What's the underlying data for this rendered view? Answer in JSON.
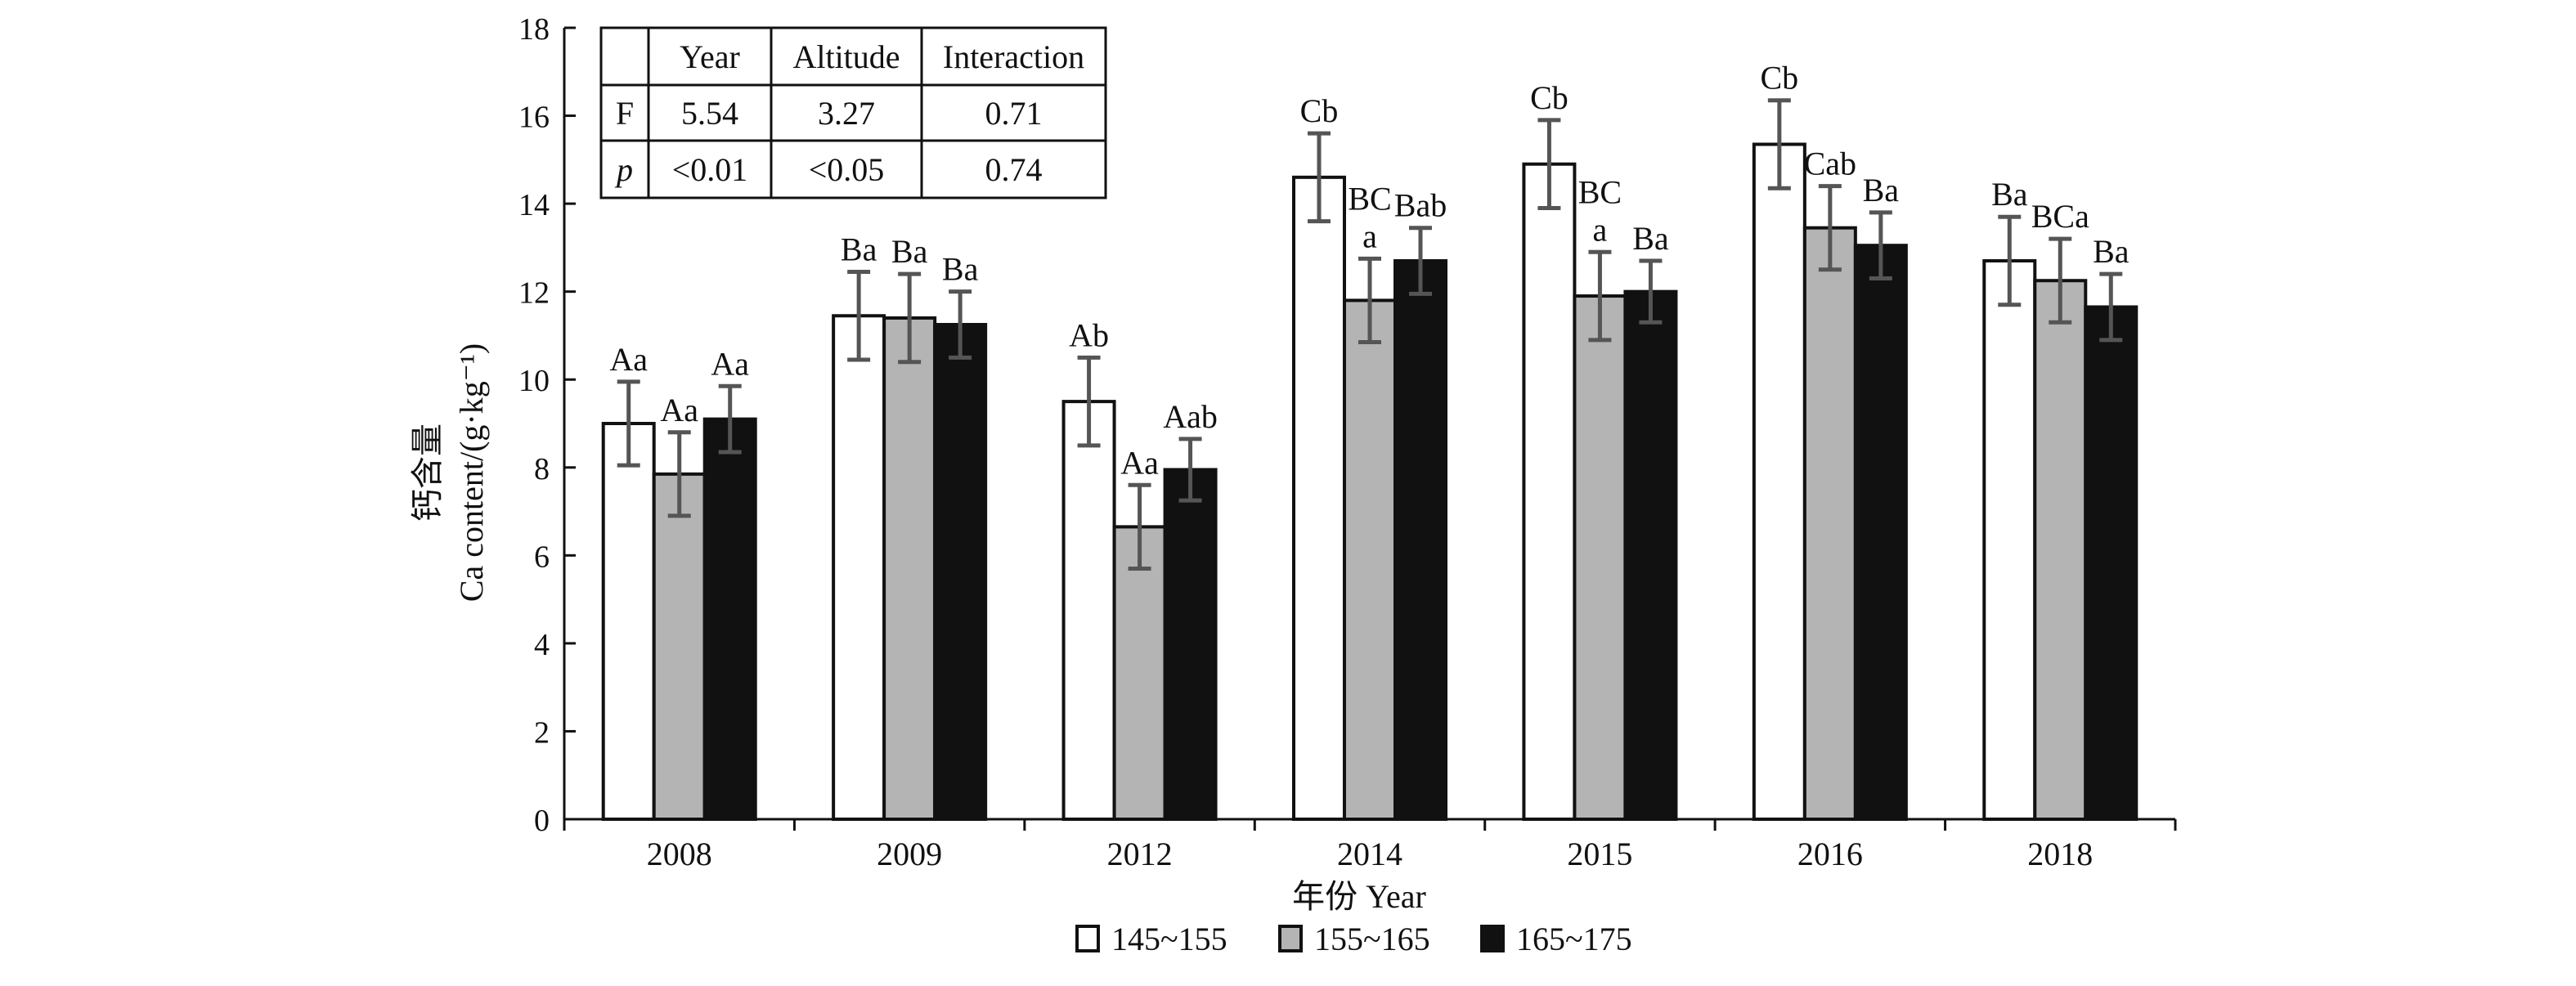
{
  "chart_data": {
    "type": "bar",
    "xlabel": "年份 Year",
    "ylabel_cn": "钙含量",
    "ylabel_en": "Ca content/(g·kg⁻¹)",
    "ylim": [
      0,
      18
    ],
    "yticks": [
      0,
      2,
      4,
      6,
      8,
      10,
      12,
      14,
      16,
      18
    ],
    "categories": [
      "2008",
      "2009",
      "2012",
      "2014",
      "2015",
      "2016",
      "2018"
    ],
    "legend_position": "bottom-center",
    "series": [
      {
        "name": "145~155",
        "color": "#ffffff",
        "values": [
          9.0,
          11.45,
          9.5,
          14.6,
          14.9,
          15.35,
          12.7
        ],
        "errors": [
          0.95,
          1.0,
          1.0,
          1.0,
          1.0,
          1.0,
          1.0
        ],
        "labels": [
          "Aa",
          "Ba",
          "Ab",
          "Cb",
          "Cb",
          "Cb",
          "Ba"
        ]
      },
      {
        "name": "155~165",
        "color": "#b4b4b4",
        "values": [
          7.85,
          11.4,
          6.65,
          11.8,
          11.9,
          13.45,
          12.25
        ],
        "errors": [
          0.95,
          1.0,
          0.95,
          0.95,
          1.0,
          0.95,
          0.95
        ],
        "labels": [
          "Aa",
          "Ba",
          "Aa",
          "BC\na",
          "BC\na",
          "Cab",
          "BCa"
        ]
      },
      {
        "name": "165~175",
        "color": "#111111",
        "values": [
          9.1,
          11.25,
          7.95,
          12.7,
          12.0,
          13.05,
          11.65
        ],
        "errors": [
          0.75,
          0.75,
          0.7,
          0.75,
          0.7,
          0.75,
          0.75
        ],
        "labels": [
          "Aa",
          "Ba",
          "Aab",
          "Bab",
          "Ba",
          "Ba",
          "Ba"
        ]
      }
    ],
    "stats_table": {
      "headers": [
        "",
        "Year",
        "Altitude",
        "Interaction"
      ],
      "rows": [
        [
          "F",
          "5.54",
          "3.27",
          "0.71"
        ],
        [
          "p",
          "<0.01",
          "<0.05",
          "0.74"
        ]
      ]
    }
  }
}
